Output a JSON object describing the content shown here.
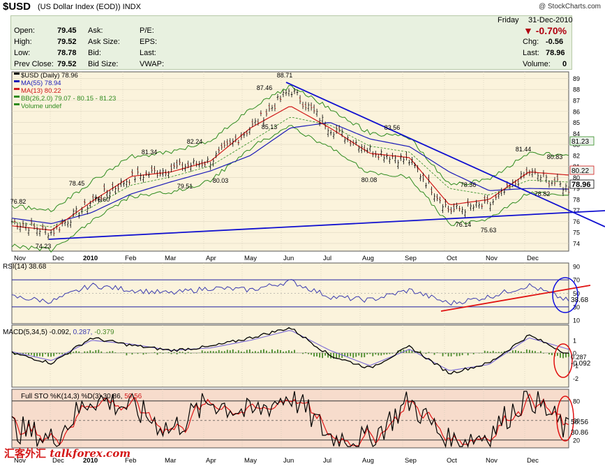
{
  "header": {
    "symbol": "$USD",
    "name": "(US Dollar Index (EOD))",
    "exchange": "INDX",
    "copyright": "@ StockCharts.com"
  },
  "quote": {
    "open_label": "Open:",
    "open": "79.45",
    "high_label": "High:",
    "high": "79.52",
    "low_label": "Low:",
    "low": "78.78",
    "prev_label": "Prev Close:",
    "prev": "79.52",
    "ask_label": "Ask:",
    "asksize_label": "Ask Size:",
    "bid_label": "Bid:",
    "bidsize_label": "Bid Size:",
    "pe_label": "P/E:",
    "eps_label": "EPS:",
    "last_label_mid": "Last:",
    "vwap_label": "VWAP:",
    "day": "Friday",
    "date": "31-Dec-2010",
    "change_pct": "-0.70%",
    "chg_label": "Chg:",
    "chg": "-0.56",
    "last_label": "Last:",
    "last": "78.96",
    "volume_label": "Volume:",
    "volume": "0"
  },
  "legend": {
    "price": "$USD (Daily) 78.96",
    "ma55": "MA(55) 78.94",
    "ma13": "MA(13) 80.22",
    "bb": "BB(26,2.0) 79.07 - 80.15 - 81.23",
    "vol": "Volume undef",
    "rsi": "RSI(14) 38.68",
    "macd_prefix": "MACD(5,34,5) -0.092,",
    "macd_signal": "0.287,",
    "macd_hist": "-0.379",
    "sto_prefix": "Full STO %K(14,3) %D(3) 30.86,",
    "sto_d": "50.56"
  },
  "colors": {
    "price": "#000000",
    "ma55": "#1a1ab8",
    "ma13": "#d01818",
    "bb": "#2e8b1e",
    "trend": "#1010d0",
    "rsi_trend": "#e01010",
    "panel_bg": "#fbf3dc",
    "sto_bg": "#f7dccc"
  },
  "x_axis": {
    "labels": [
      "Nov",
      "Dec",
      "2010",
      "Feb",
      "Mar",
      "Apr",
      "May",
      "Jun",
      "Jul",
      "Aug",
      "Sep",
      "Oct",
      "Nov",
      "Dec"
    ]
  },
  "chart_data": [
    {
      "type": "line",
      "title": "$USD (Daily) 78.96",
      "ylim": [
        73.3,
        89.6
      ],
      "y_ticks": [
        74,
        75,
        76,
        77,
        78,
        79,
        80,
        81,
        82,
        83,
        84,
        85,
        86,
        87,
        88,
        89
      ],
      "series": [
        {
          "name": "$USD",
          "x": [
            "Nov 09",
            "Dec 09",
            "Jan 10",
            "Feb 10",
            "Mar 10",
            "Apr 10",
            "May 10",
            "Jun 10",
            "Jul 10",
            "Aug 10",
            "Sep 10",
            "Oct 10",
            "Nov 10",
            "Dec 10",
            "Dec 31"
          ],
          "values": [
            76.0,
            75.0,
            77.8,
            80.0,
            80.8,
            81.5,
            84.5,
            88.0,
            84.5,
            82.5,
            81.5,
            77.0,
            77.5,
            80.5,
            78.96
          ]
        },
        {
          "name": "MA(55)",
          "values": [
            76.3,
            75.8,
            76.8,
            78.5,
            79.6,
            80.6,
            82.0,
            84.5,
            85.0,
            83.5,
            82.8,
            80.5,
            78.8,
            79.0,
            78.94
          ]
        },
        {
          "name": "MA(13)",
          "values": [
            75.6,
            75.2,
            77.8,
            80.1,
            80.5,
            81.5,
            84.5,
            86.5,
            84.5,
            82.2,
            81.8,
            77.5,
            78.0,
            80.5,
            80.22
          ]
        }
      ],
      "annotations": [
        "76.82",
        "74.23",
        "78.45",
        "76.60",
        "81.34",
        "79.51",
        "82.24",
        "80.03",
        "87.46",
        "85.13",
        "88.71",
        "80.08",
        "83.56",
        "78.36",
        "76.14",
        "75.63",
        "81.44",
        "80.83",
        "78.82"
      ],
      "price_tags": [
        "81.23",
        "80.22",
        "78.96"
      ]
    },
    {
      "type": "line",
      "title": "RSI(14) 38.68",
      "ylim": [
        5,
        95
      ],
      "y_ticks": [
        10,
        30,
        50,
        70,
        90
      ],
      "series": [
        {
          "name": "RSI(14)",
          "values": [
            45,
            38,
            62,
            55,
            50,
            58,
            55,
            68,
            45,
            40,
            55,
            35,
            45,
            62,
            38.68
          ]
        }
      ],
      "price_tags": [
        "38.68"
      ]
    },
    {
      "type": "line",
      "title": "MACD(5,34,5) -0.092, 0.287, -0.379",
      "ylim": [
        -2.7,
        2.2
      ],
      "y_ticks": [
        1,
        0,
        -1,
        -2
      ],
      "series": [
        {
          "name": "MACD",
          "values": [
            0,
            -0.8,
            1.2,
            0.6,
            0.2,
            0.5,
            1.2,
            2.0,
            -0.2,
            -1.2,
            0.5,
            -1.6,
            -0.8,
            1.4,
            -0.092
          ]
        },
        {
          "name": "Signal",
          "values": [
            0.1,
            -0.6,
            1.0,
            0.7,
            0.2,
            0.4,
            1.0,
            1.8,
            0.2,
            -1.0,
            0.3,
            -1.4,
            -0.9,
            1.2,
            0.287
          ]
        }
      ],
      "price_tags": [
        "0.287",
        "-0.092"
      ]
    },
    {
      "type": "line",
      "title": "Full STO %K(14,3) %D(3) 30.86, 50.56",
      "ylim": [
        8,
        98
      ],
      "y_ticks": [
        20,
        50,
        80
      ],
      "series": [
        {
          "name": "%K",
          "values": [
            40,
            20,
            85,
            70,
            35,
            80,
            60,
            90,
            25,
            20,
            80,
            15,
            30,
            90,
            30.86
          ]
        },
        {
          "name": "%D",
          "values": [
            45,
            25,
            80,
            72,
            40,
            75,
            62,
            85,
            30,
            25,
            75,
            18,
            35,
            85,
            50.56
          ]
        }
      ],
      "price_tags": [
        "50.56",
        "30.86"
      ]
    }
  ],
  "watermark": {
    "cn": "汇客外汇",
    "domain": "talkforex.com"
  }
}
